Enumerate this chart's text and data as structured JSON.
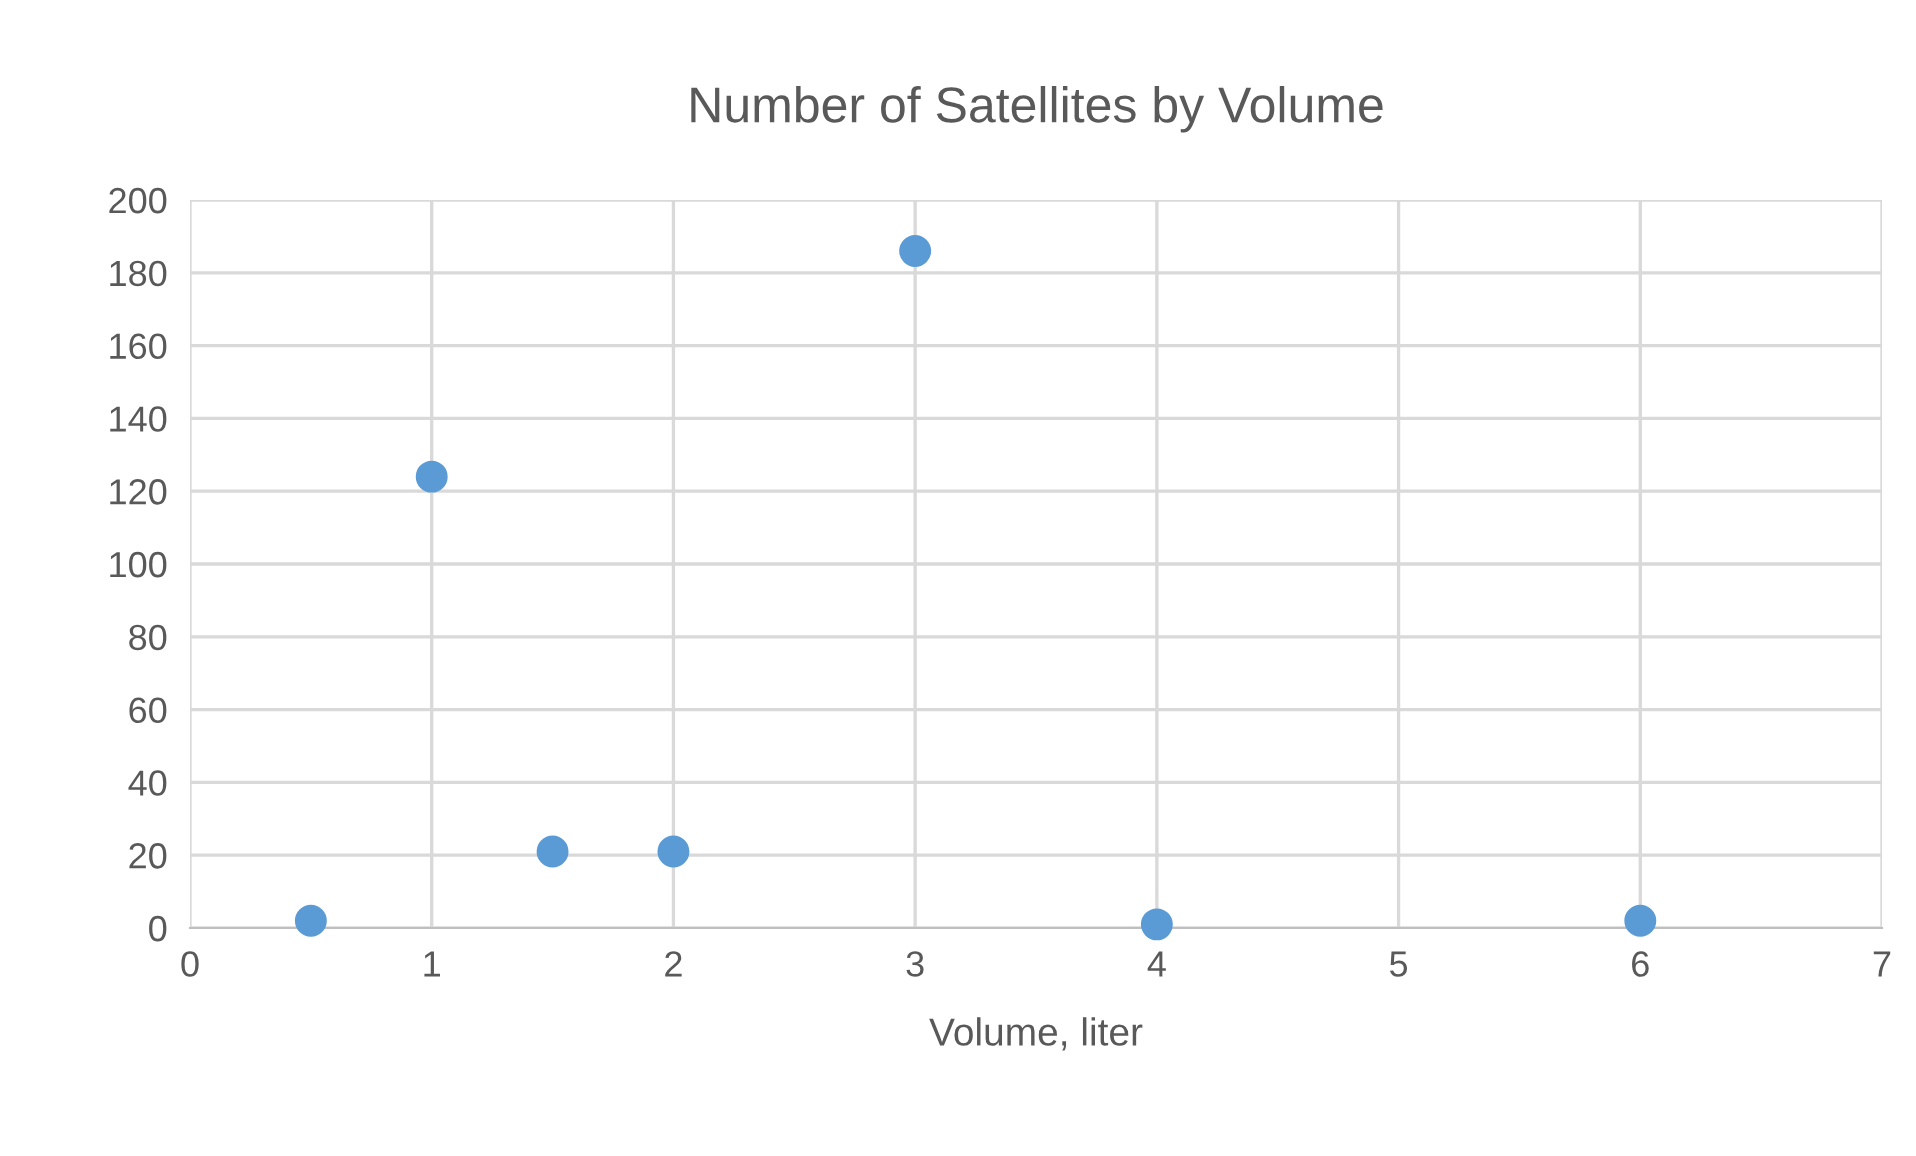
{
  "chart_data": {
    "type": "scatter",
    "title": "Number of Satellites by Volume",
    "xlabel": "Volume, liter",
    "series": [
      {
        "color": "#5b9bd5",
        "x": [
          0.5,
          1,
          1.5,
          2,
          3,
          4,
          6
        ],
        "values": [
          2,
          124,
          21,
          21,
          186,
          1,
          2
        ]
      }
    ],
    "xlim": [
      0,
      7
    ],
    "xticks": [
      0,
      1,
      2,
      3,
      4,
      5,
      6,
      7
    ],
    "ylim": [
      0,
      200
    ],
    "yticks": [
      0,
      20,
      40,
      60,
      80,
      100,
      120,
      140,
      160,
      180,
      200
    ],
    "grid": true,
    "marker": "circle"
  }
}
